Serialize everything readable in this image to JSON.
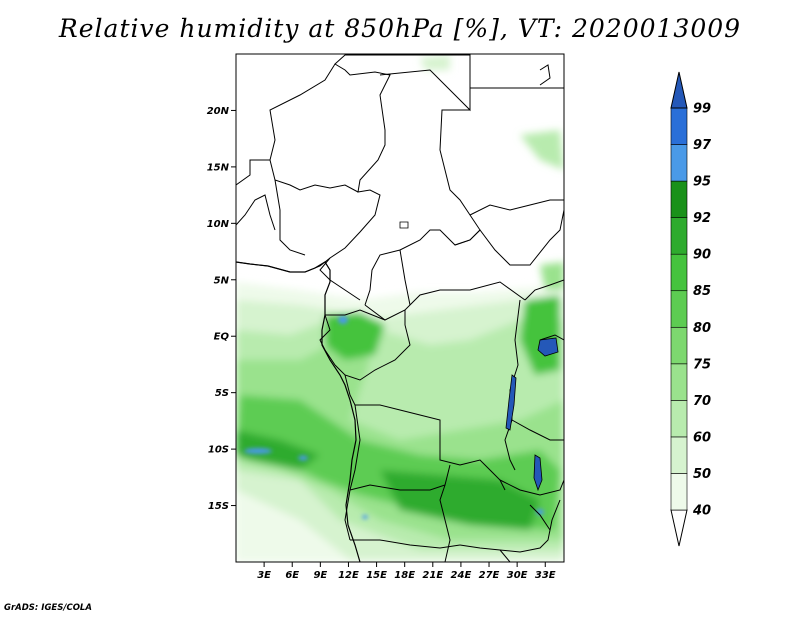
{
  "title": "Relative humidity at 850hPa [%], VT: 2020013009",
  "credit": "GrADS: IGES/COLA",
  "map": {
    "lon_range": [
      0,
      35
    ],
    "lat_range": [
      -20,
      25
    ],
    "lat_ticks": [
      "20N",
      "15N",
      "10N",
      "5N",
      "EQ",
      "5S",
      "10S",
      "15S"
    ],
    "lon_ticks": [
      "3E",
      "6E",
      "9E",
      "12E",
      "15E",
      "18E",
      "21E",
      "24E",
      "27E",
      "30E",
      "33E"
    ]
  },
  "colorbar": {
    "levels": [
      "40",
      "50",
      "60",
      "70",
      "75",
      "80",
      "85",
      "90",
      "92",
      "95",
      "97",
      "99"
    ],
    "colors": [
      "#eefaea",
      "#d6f3cf",
      "#b8ebae",
      "#9ae28d",
      "#7dd86f",
      "#5dcc52",
      "#45c33e",
      "#2eab2e",
      "#199119",
      "#4a9ae8",
      "#2a6fd8",
      "#2458b8"
    ]
  }
}
